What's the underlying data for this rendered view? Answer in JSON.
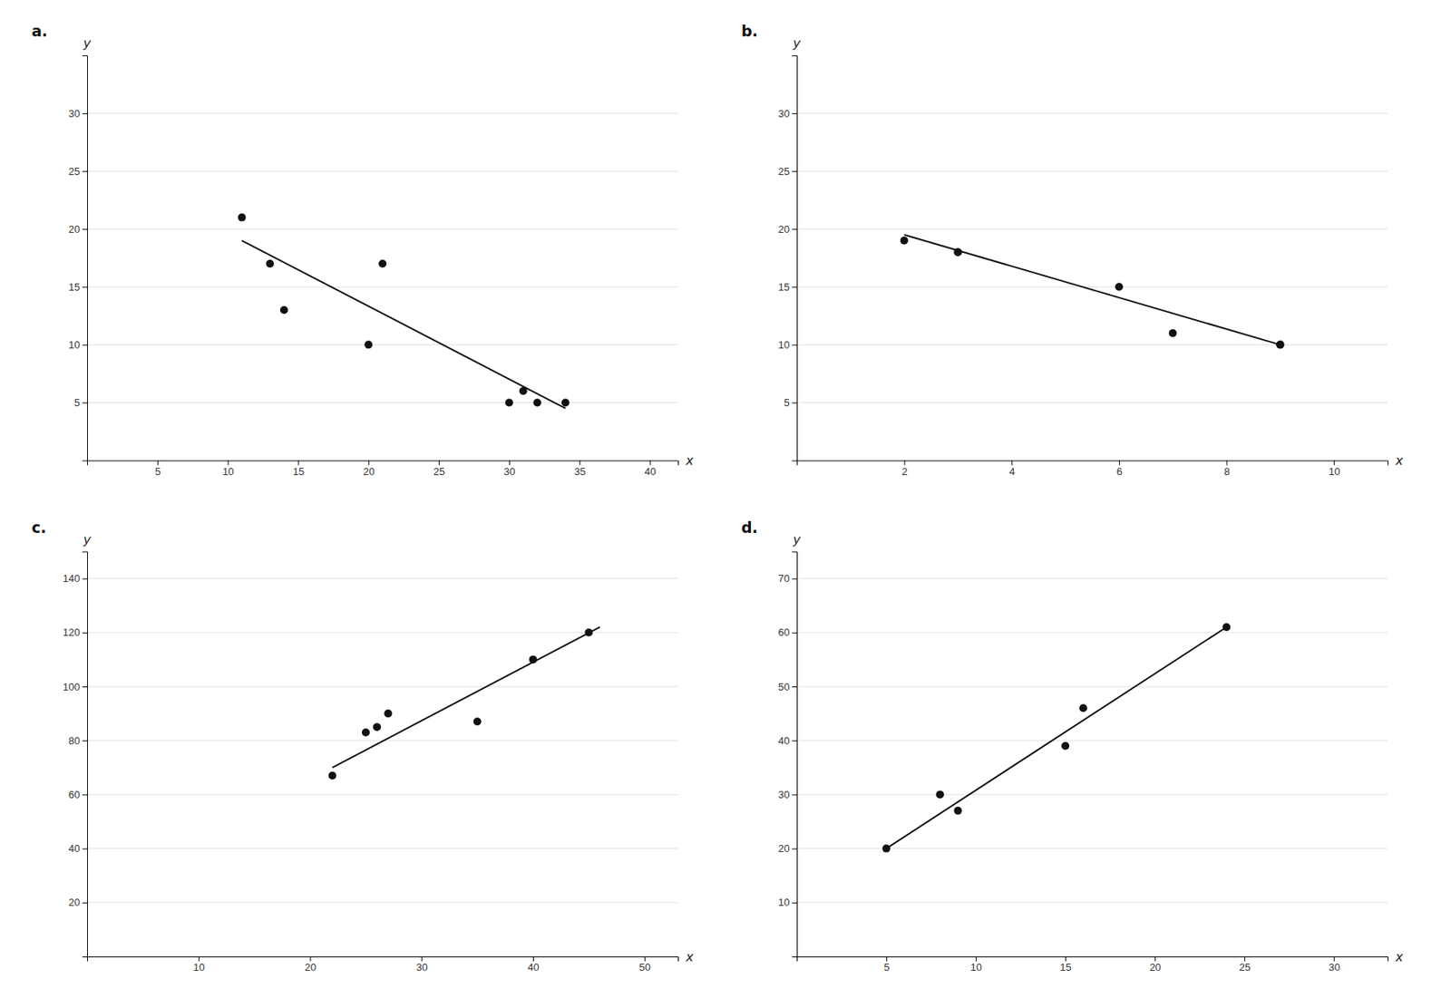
{
  "chart_data": [
    {
      "type": "scatter",
      "title": "a.",
      "xlabel": "x",
      "ylabel": "y",
      "series": [
        {
          "type": "scatter",
          "color": "#111111",
          "x": [
            11,
            13,
            14,
            20,
            21,
            30,
            31,
            32,
            34
          ],
          "values": [
            21,
            17,
            13,
            10,
            17,
            5,
            6,
            5,
            5
          ]
        },
        {
          "type": "line",
          "color": "#111111",
          "x": [
            11,
            34
          ],
          "values": [
            19,
            4.5
          ]
        }
      ],
      "xlim": [
        0,
        42
      ],
      "ylim": [
        0,
        35
      ],
      "xticks": [
        5,
        10,
        15,
        20,
        25,
        30,
        35,
        40
      ],
      "yticks": [
        5,
        10,
        15,
        20,
        25,
        30
      ],
      "grid": true
    },
    {
      "type": "scatter",
      "title": "b.",
      "xlabel": "x",
      "ylabel": "y",
      "series": [
        {
          "type": "scatter",
          "color": "#111111",
          "x": [
            2,
            3,
            3,
            6,
            7,
            9,
            9
          ],
          "values": [
            19,
            18,
            18,
            15,
            11,
            10,
            10
          ]
        },
        {
          "type": "line",
          "color": "#111111",
          "x": [
            2,
            9
          ],
          "values": [
            19.5,
            10
          ]
        }
      ],
      "xlim": [
        0,
        11
      ],
      "ylim": [
        0,
        35
      ],
      "xticks": [
        2,
        4,
        6,
        8,
        10
      ],
      "yticks": [
        5,
        10,
        15,
        20,
        25,
        30
      ],
      "grid": true
    },
    {
      "type": "scatter",
      "title": "c.",
      "xlabel": "x",
      "ylabel": "y",
      "series": [
        {
          "type": "scatter",
          "color": "#111111",
          "x": [
            22,
            25,
            26,
            27,
            35,
            40,
            45
          ],
          "values": [
            67,
            83,
            85,
            90,
            87,
            110,
            120
          ]
        },
        {
          "type": "line",
          "color": "#111111",
          "x": [
            22,
            46
          ],
          "values": [
            70,
            122
          ]
        }
      ],
      "xlim": [
        0,
        53
      ],
      "ylim": [
        0,
        150
      ],
      "xticks": [
        10,
        20,
        30,
        40,
        50
      ],
      "yticks": [
        20,
        40,
        60,
        80,
        100,
        120,
        140
      ],
      "grid": true
    },
    {
      "type": "scatter",
      "title": "d.",
      "xlabel": "x",
      "ylabel": "y",
      "series": [
        {
          "type": "scatter",
          "color": "#111111",
          "x": [
            5,
            8,
            9,
            15,
            16,
            24
          ],
          "values": [
            20,
            30,
            27,
            39,
            46,
            61
          ]
        },
        {
          "type": "line",
          "color": "#111111",
          "x": [
            5,
            24
          ],
          "values": [
            20,
            61
          ]
        }
      ],
      "xlim": [
        0,
        33
      ],
      "ylim": [
        0,
        75
      ],
      "xticks": [
        5,
        10,
        15,
        20,
        25,
        30
      ],
      "yticks": [
        10,
        20,
        30,
        40,
        50,
        60,
        70
      ],
      "grid": true
    }
  ]
}
